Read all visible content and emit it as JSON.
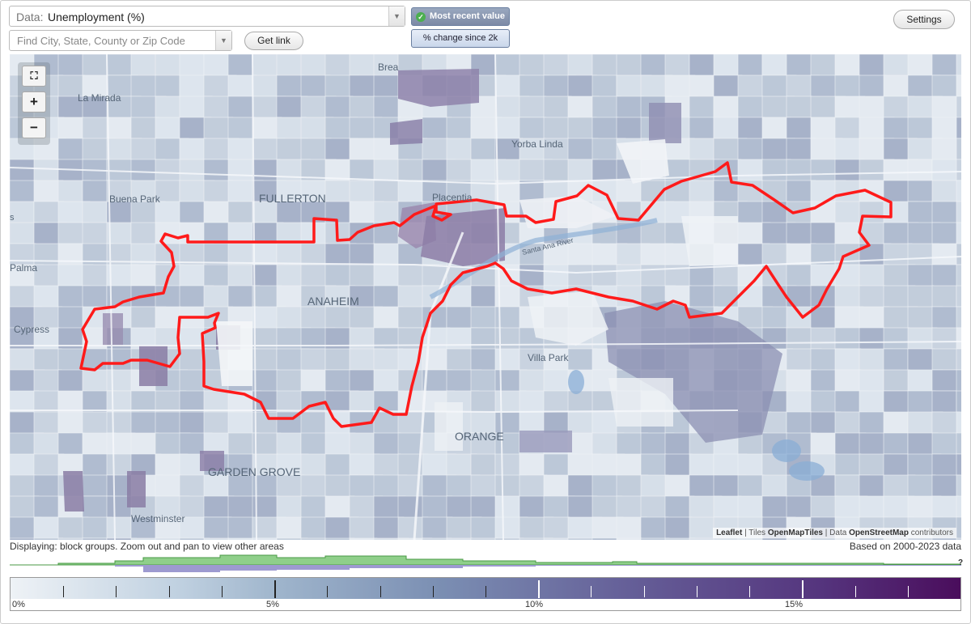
{
  "data_selector": {
    "prefix": "Data:",
    "value": "Unemployment (%)"
  },
  "search": {
    "placeholder": "Find City, State, County or Zip Code",
    "value": ""
  },
  "buttons": {
    "get_link": "Get link",
    "settings": "Settings"
  },
  "toggles": {
    "recent": "Most recent value",
    "change": "% change since 2k",
    "selected": "recent"
  },
  "zoom": {
    "in": "+",
    "out": "−",
    "reset": "⛶"
  },
  "map_labels": {
    "brea": "Brea",
    "la_mirada": "La Mirada",
    "yorba_linda": "Yorba Linda",
    "buena_park": "Buena Park",
    "fullerton": "FULLERTON",
    "placentia": "Placentia",
    "palma": "Palma",
    "anaheim": "ANAHEIM",
    "cypress": "Cypress",
    "villa_park": "Villa Park",
    "orange": "ORANGE",
    "garden_grove": "GARDEN GROVE",
    "westminster": "Westminster",
    "santa_ana_river": "Santa Ana River",
    "edge_s": "s"
  },
  "attribution": {
    "leaflet": "Leaflet",
    "tiles_prefix": "Tiles",
    "tiles": "OpenMapTiles",
    "data_prefix": "Data",
    "osm": "OpenStreetMap",
    "suffix": "contributors"
  },
  "displaying": "Displaying: block groups. Zoom out and pan to view other areas",
  "based_on": "Based on 2000-2023 data",
  "histogram_note": "?",
  "legend": {
    "labels": [
      "0%",
      "5%",
      "10%",
      "15%"
    ],
    "min": 0,
    "max": 18
  },
  "colors": {
    "boundary": "#ff1a1a",
    "toggle_active": "#7d8aa6"
  }
}
